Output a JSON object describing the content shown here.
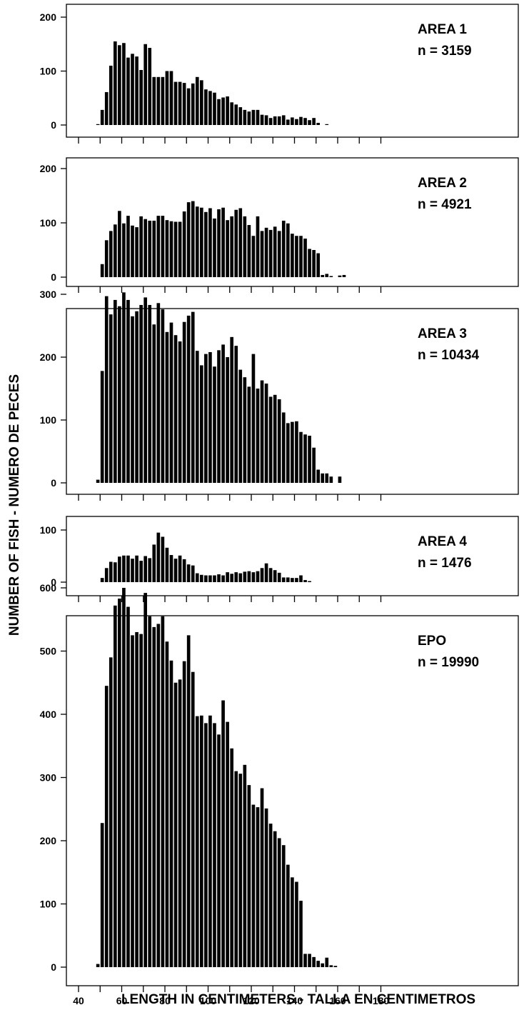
{
  "figure": {
    "ylabel": "NUMBER OF FISH - NUMERO DE PECES",
    "xlabel": "LENGTH IN CENTIMETERS - TALLA EN CENTIMETROS",
    "bar_fill": "#000000"
  },
  "chart_data": [
    {
      "type": "bar",
      "title": "AREA 1",
      "n_label": "n = 3159",
      "xlim": [
        40,
        182
      ],
      "ylim": [
        0,
        230
      ],
      "yticks": [
        0,
        100,
        200
      ],
      "x_start": 48,
      "bin_width": 2,
      "values": [
        1,
        28,
        61,
        110,
        155,
        148,
        152,
        125,
        132,
        127,
        102,
        150,
        143,
        89,
        89,
        89,
        100,
        100,
        80,
        80,
        78,
        68,
        77,
        89,
        83,
        66,
        63,
        60,
        48,
        51,
        53,
        42,
        38,
        33,
        28,
        25,
        28,
        28,
        19,
        18,
        13,
        16,
        16,
        18,
        10,
        14,
        11,
        15,
        13,
        9,
        13,
        4,
        0,
        1
      ]
    },
    {
      "type": "bar",
      "title": "AREA 2",
      "n_label": "n = 4921",
      "xlim": [
        40,
        182
      ],
      "ylim": [
        0,
        230
      ],
      "yticks": [
        0,
        100,
        200
      ],
      "x_start": 48,
      "bin_width": 2,
      "values": [
        0,
        24,
        68,
        85,
        97,
        122,
        99,
        113,
        95,
        92,
        112,
        107,
        104,
        104,
        113,
        113,
        105,
        103,
        102,
        102,
        121,
        138,
        140,
        130,
        128,
        120,
        127,
        108,
        125,
        128,
        105,
        112,
        124,
        127,
        112,
        96,
        76,
        112,
        85,
        91,
        87,
        93,
        85,
        104,
        99,
        80,
        76,
        76,
        71,
        52,
        50,
        44,
        4,
        6,
        2,
        0,
        3,
        4
      ]
    },
    {
      "type": "bar",
      "title": "AREA 3",
      "n_label": "n = 10434",
      "xlim": [
        40,
        182
      ],
      "ylim": [
        0,
        330
      ],
      "yticks": [
        0,
        100,
        200,
        300
      ],
      "x_start": 48,
      "bin_width": 2,
      "values": [
        5,
        178,
        297,
        268,
        291,
        281,
        303,
        291,
        265,
        273,
        283,
        295,
        283,
        252,
        286,
        276,
        240,
        255,
        235,
        225,
        256,
        266,
        272,
        210,
        187,
        205,
        208,
        185,
        211,
        220,
        200,
        232,
        218,
        180,
        168,
        153,
        205,
        150,
        163,
        158,
        137,
        140,
        133,
        112,
        95,
        97,
        98,
        81,
        77,
        75,
        56,
        21,
        15,
        15,
        10,
        0,
        10
      ]
    },
    {
      "type": "bar",
      "title": "AREA 4",
      "n_label": "n = 1476",
      "xlim": [
        40,
        182
      ],
      "ylim": [
        0,
        120
      ],
      "yticks": [
        0,
        100
      ],
      "x_start": 48,
      "bin_width": 2,
      "values": [
        0,
        8,
        27,
        39,
        38,
        49,
        51,
        51,
        45,
        51,
        41,
        50,
        46,
        72,
        95,
        87,
        66,
        52,
        45,
        51,
        44,
        34,
        32,
        17,
        14,
        13,
        13,
        13,
        15,
        13,
        19,
        16,
        19,
        17,
        20,
        21,
        19,
        21,
        27,
        36,
        27,
        23,
        18,
        9,
        9,
        8,
        8,
        13,
        4,
        2
      ]
    },
    {
      "type": "bar",
      "title": "EPO",
      "n_label": "n = 19990",
      "xlim": [
        40,
        182
      ],
      "ylim": [
        0,
        650
      ],
      "yticks": [
        0,
        100,
        200,
        300,
        400,
        500,
        600
      ],
      "xticks": [
        40,
        60,
        80,
        100,
        120,
        140,
        160,
        180
      ],
      "x_start": 48,
      "bin_width": 2,
      "values": [
        5,
        228,
        445,
        490,
        572,
        583,
        600,
        570,
        525,
        530,
        527,
        592,
        555,
        538,
        543,
        555,
        515,
        485,
        450,
        455,
        484,
        525,
        467,
        397,
        398,
        386,
        398,
        386,
        368,
        422,
        388,
        346,
        310,
        306,
        320,
        288,
        257,
        253,
        283,
        251,
        227,
        215,
        204,
        193,
        162,
        142,
        135,
        105,
        21,
        21,
        16,
        10,
        6,
        15,
        3,
        2
      ]
    }
  ]
}
